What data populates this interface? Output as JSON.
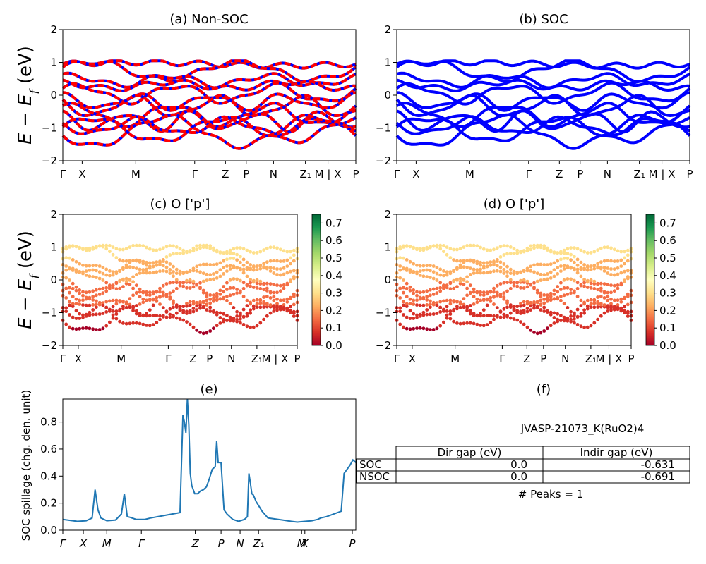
{
  "colors": {
    "non_soc_primary": "#ff0000",
    "non_soc_secondary": "#0000ff",
    "soc": "#0000ff",
    "spillage_line": "#1f77b4",
    "colormap": [
      "#a50026",
      "#d73027",
      "#f46d43",
      "#fdae61",
      "#fee08b",
      "#ffffbf",
      "#d9ef8b",
      "#a6d96a",
      "#66bd63",
      "#1a9850",
      "#006837"
    ]
  },
  "kpath_labels": [
    "Γ",
    "X",
    "M",
    "Γ",
    "Z",
    "P",
    "N",
    "Z₁",
    "M | X",
    "P"
  ],
  "spill_kpath_labels": [
    "Γ",
    "X",
    "M",
    "Γ",
    "Z",
    "P",
    "N",
    "Z₁",
    "M",
    "X",
    "P"
  ],
  "chart_data": [
    {
      "id": "a",
      "type": "line",
      "title": "(a) Non-SOC",
      "ylabel": "E − E_f (eV)",
      "ylim": [
        -2,
        2
      ],
      "yticks": [
        "−2",
        "−1",
        "0",
        "1",
        "2"
      ]
    },
    {
      "id": "b",
      "type": "line",
      "title": "(b) SOC",
      "ylim": [
        -2,
        2
      ],
      "yticks": [
        "−2",
        "−1",
        "0",
        "1",
        "2"
      ]
    },
    {
      "id": "c",
      "type": "scatter",
      "title": "(c)  O ['p']",
      "ylabel": "E − E_f (eV)",
      "ylim": [
        -2,
        2
      ],
      "yticks": [
        "−2",
        "−1",
        "0",
        "1",
        "2"
      ],
      "colorbar": {
        "range": [
          0,
          0.75
        ],
        "ticks": [
          "0.0",
          "0.1",
          "0.2",
          "0.3",
          "0.4",
          "0.5",
          "0.6",
          "0.7"
        ]
      }
    },
    {
      "id": "d",
      "type": "scatter",
      "title": "(d) O ['p']",
      "ylim": [
        -2,
        2
      ],
      "yticks": [
        "−2",
        "−1",
        "0",
        "1",
        "2"
      ],
      "colorbar": {
        "range": [
          0,
          0.75
        ],
        "ticks": [
          "0.0",
          "0.1",
          "0.2",
          "0.3",
          "0.4",
          "0.5",
          "0.6",
          "0.7"
        ]
      }
    },
    {
      "id": "e",
      "type": "line",
      "title": "(e)",
      "ylabel": "SOC spillage (chg. den. unit)",
      "ylim": [
        0,
        0.97
      ],
      "yticks": [
        "0.0",
        "0.2",
        "0.4",
        "0.6",
        "0.8"
      ],
      "x": [
        0,
        0.05,
        0.08,
        0.1,
        0.11,
        0.12,
        0.13,
        0.15,
        0.18,
        0.2,
        0.21,
        0.22,
        0.23,
        0.25,
        0.28,
        0.3,
        0.35,
        0.4,
        0.41,
        0.415,
        0.42,
        0.425,
        0.43,
        0.435,
        0.44,
        0.45,
        0.46,
        0.47,
        0.48,
        0.49,
        0.5,
        0.51,
        0.52,
        0.525,
        0.53,
        0.535,
        0.54,
        0.55,
        0.56,
        0.58,
        0.6,
        0.62,
        0.63,
        0.635,
        0.64,
        0.645,
        0.65,
        0.66,
        0.68,
        0.7,
        0.75,
        0.78,
        0.8,
        0.85,
        0.87,
        0.88,
        0.9,
        0.95,
        0.96,
        0.98,
        0.99,
        1.0
      ],
      "y": [
        0.08,
        0.065,
        0.07,
        0.09,
        0.3,
        0.15,
        0.09,
        0.07,
        0.075,
        0.12,
        0.27,
        0.1,
        0.095,
        0.08,
        0.08,
        0.09,
        0.11,
        0.13,
        0.85,
        0.8,
        0.72,
        0.98,
        0.78,
        0.42,
        0.33,
        0.27,
        0.27,
        0.29,
        0.3,
        0.32,
        0.38,
        0.45,
        0.47,
        0.66,
        0.5,
        0.5,
        0.5,
        0.15,
        0.12,
        0.08,
        0.065,
        0.08,
        0.1,
        0.42,
        0.35,
        0.27,
        0.26,
        0.21,
        0.14,
        0.09,
        0.075,
        0.065,
        0.06,
        0.07,
        0.08,
        0.09,
        0.1,
        0.14,
        0.42,
        0.48,
        0.52,
        0.5
      ]
    }
  ],
  "panel_f": {
    "title": "(f)",
    "subtitle": "JVASP-21073_K(RuO2)4",
    "table": {
      "headers": [
        "Dir gap (eV)",
        "Indir gap (eV)"
      ],
      "rows": [
        {
          "label": "SOC",
          "dir": "0.0",
          "indir": "-0.631"
        },
        {
          "label": "NSOC",
          "dir": "0.0",
          "indir": "-0.691"
        }
      ]
    },
    "peaks": "# Peaks = 1"
  }
}
